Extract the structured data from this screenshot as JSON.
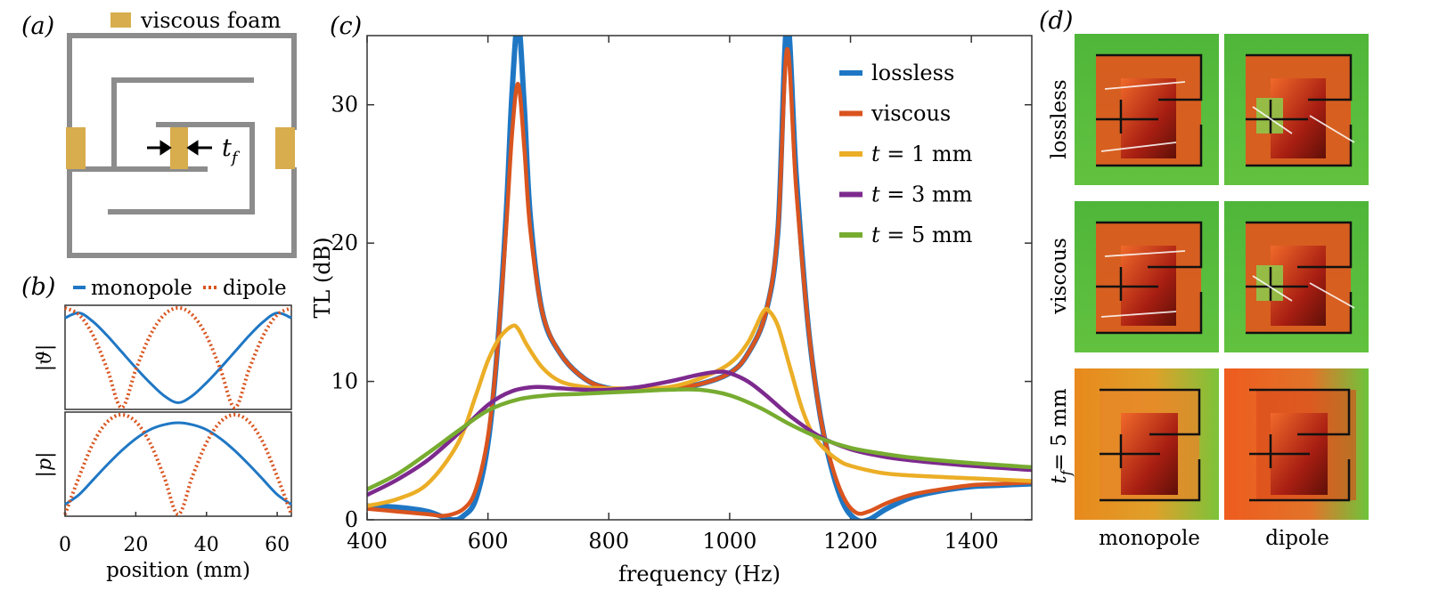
{
  "panels": {
    "a": {
      "label": "(a)",
      "legend_text": "viscous foam",
      "thickness_label": "t",
      "thickness_sub": "f"
    },
    "b": {
      "label": "(b)",
      "legend": [
        "monopole",
        "dipole"
      ],
      "top_ylabel": "|ϑ|",
      "bottom_ylabel": "|p|",
      "xlabel": "position (mm)",
      "xticks": [
        "0",
        "20",
        "40",
        "60"
      ]
    },
    "c": {
      "label": "(c)"
    },
    "d": {
      "label": "(d)",
      "row_labels": [
        "lossless",
        "viscous",
        "t",
        "= 5 mm"
      ],
      "row3_sub": "f",
      "col_labels": [
        "monopole",
        "dipole"
      ]
    }
  },
  "chart_data": [
    {
      "type": "line",
      "panel": "b-top",
      "xlabel": "position (mm)",
      "ylabel": "|ϑ|",
      "xlim": [
        0,
        64
      ],
      "series": [
        {
          "name": "monopole",
          "style": "solid",
          "color": "#1f77c4",
          "x": [
            0,
            4,
            8,
            12,
            16,
            20,
            24,
            28,
            32,
            36,
            40,
            44,
            48,
            52,
            56,
            60,
            64
          ],
          "y": [
            0.9,
            0.95,
            0.86,
            0.72,
            0.56,
            0.4,
            0.25,
            0.12,
            0.05,
            0.12,
            0.25,
            0.4,
            0.56,
            0.72,
            0.86,
            0.95,
            0.9
          ]
        },
        {
          "name": "dipole",
          "style": "dotted",
          "color": "#d9541e",
          "x": [
            0,
            4,
            8,
            12,
            16,
            20,
            24,
            28,
            32,
            36,
            40,
            44,
            48,
            52,
            56,
            60,
            64
          ],
          "y": [
            1.0,
            0.93,
            0.72,
            0.38,
            0.0,
            0.38,
            0.72,
            0.93,
            1.0,
            0.93,
            0.72,
            0.38,
            0.0,
            0.38,
            0.72,
            0.93,
            1.0
          ]
        }
      ]
    },
    {
      "type": "line",
      "panel": "b-bottom",
      "xlabel": "position (mm)",
      "ylabel": "|p|",
      "xlim": [
        0,
        64
      ],
      "series": [
        {
          "name": "monopole",
          "style": "solid",
          "color": "#1f77c4",
          "x": [
            0,
            4,
            8,
            12,
            16,
            20,
            24,
            28,
            32,
            36,
            40,
            44,
            48,
            52,
            56,
            60,
            64
          ],
          "y": [
            0.1,
            0.2,
            0.35,
            0.5,
            0.64,
            0.76,
            0.85,
            0.9,
            0.92,
            0.9,
            0.85,
            0.76,
            0.64,
            0.5,
            0.35,
            0.2,
            0.1
          ]
        },
        {
          "name": "dipole",
          "style": "dotted",
          "color": "#d9541e",
          "x": [
            0,
            4,
            8,
            12,
            16,
            20,
            24,
            28,
            32,
            36,
            40,
            44,
            48,
            52,
            56,
            60,
            64
          ],
          "y": [
            0.0,
            0.38,
            0.72,
            0.93,
            1.0,
            0.93,
            0.72,
            0.38,
            0.0,
            0.38,
            0.72,
            0.93,
            1.0,
            0.93,
            0.72,
            0.38,
            0.0
          ]
        }
      ]
    },
    {
      "type": "line",
      "panel": "c",
      "xlabel": "frequency (Hz)",
      "ylabel": "TL (dB)",
      "xlim": [
        400,
        1500
      ],
      "ylim": [
        0,
        35
      ],
      "xticks": [
        400,
        600,
        800,
        1000,
        1200,
        1400
      ],
      "yticks": [
        0,
        10,
        20,
        30
      ],
      "legend_position": "top-right",
      "series": [
        {
          "name": "lossless",
          "label_parts": [
            "lossless"
          ],
          "color": "#1f77c4",
          "x": [
            400,
            450,
            500,
            540,
            560,
            580,
            600,
            615,
            630,
            640,
            650,
            660,
            670,
            690,
            720,
            760,
            800,
            850,
            900,
            950,
            1000,
            1030,
            1060,
            1080,
            1095,
            1110,
            1130,
            1150,
            1170,
            1190,
            1210,
            1230,
            1260,
            1300,
            1350,
            1400,
            1450,
            1500
          ],
          "y": [
            1.0,
            0.9,
            0.6,
            0.0,
            0.3,
            1.5,
            5.5,
            12,
            22,
            31,
            36,
            30,
            22,
            15,
            12,
            10.2,
            9.5,
            9.4,
            9.5,
            9.8,
            10.6,
            12,
            15,
            21,
            36,
            25,
            14,
            7.5,
            3.5,
            1.0,
            0.0,
            0.0,
            0.8,
            1.6,
            2.1,
            2.4,
            2.5,
            2.6
          ]
        },
        {
          "name": "viscous",
          "label_parts": [
            "viscous"
          ],
          "color": "#d9541e",
          "x": [
            400,
            450,
            500,
            530,
            560,
            580,
            600,
            615,
            630,
            640,
            650,
            660,
            670,
            690,
            720,
            760,
            800,
            850,
            900,
            950,
            1000,
            1030,
            1060,
            1080,
            1095,
            1110,
            1130,
            1150,
            1170,
            1190,
            1210,
            1230,
            1260,
            1300,
            1350,
            1400,
            1450,
            1500
          ],
          "y": [
            0.8,
            0.6,
            0.4,
            0.3,
            0.8,
            2.2,
            6.0,
            12,
            21,
            28,
            31.5,
            27,
            21,
            15,
            12,
            10.2,
            9.5,
            9.4,
            9.5,
            9.8,
            10.6,
            12,
            15,
            21,
            34,
            24,
            14,
            7.5,
            3.8,
            1.5,
            0.5,
            0.6,
            1.2,
            1.8,
            2.2,
            2.5,
            2.6,
            2.7
          ]
        },
        {
          "name": "t = 1 mm",
          "label_parts": [
            "t",
            " = 1 mm"
          ],
          "color": "#ebae26",
          "x": [
            400,
            450,
            500,
            550,
            580,
            600,
            620,
            640,
            650,
            665,
            690,
            720,
            760,
            800,
            850,
            900,
            950,
            1000,
            1030,
            1055,
            1065,
            1080,
            1100,
            1120,
            1140,
            1160,
            1180,
            1200,
            1250,
            1300,
            1400,
            1500
          ],
          "y": [
            1.0,
            1.5,
            2.6,
            5.5,
            9.0,
            11.5,
            13.2,
            14,
            13.8,
            12.6,
            11.0,
            10.0,
            9.6,
            9.5,
            9.5,
            9.6,
            10.2,
            11.3,
            12.8,
            15.0,
            15.1,
            14.0,
            11.0,
            8.0,
            6.0,
            5.0,
            4.3,
            3.9,
            3.4,
            3.2,
            3.0,
            2.8
          ]
        },
        {
          "name": "t = 3 mm",
          "label_parts": [
            "t",
            " = 3 mm"
          ],
          "color": "#7d2a8e",
          "x": [
            400,
            450,
            500,
            550,
            600,
            640,
            680,
            720,
            760,
            800,
            850,
            900,
            950,
            980,
            1000,
            1030,
            1060,
            1100,
            1150,
            1200,
            1250,
            1300,
            1400,
            1500
          ],
          "y": [
            1.8,
            2.9,
            4.3,
            6.2,
            8.3,
            9.3,
            9.6,
            9.5,
            9.4,
            9.4,
            9.6,
            10.0,
            10.5,
            10.7,
            10.6,
            10.0,
            9.0,
            7.5,
            6.0,
            5.1,
            4.6,
            4.3,
            3.9,
            3.6
          ]
        },
        {
          "name": "t = 5 mm",
          "label_parts": [
            "t",
            " = 5 mm"
          ],
          "color": "#77ac30",
          "x": [
            400,
            450,
            500,
            550,
            600,
            650,
            700,
            750,
            800,
            850,
            900,
            950,
            1000,
            1050,
            1100,
            1150,
            1200,
            1250,
            1300,
            1400,
            1500
          ],
          "y": [
            2.2,
            3.3,
            4.8,
            6.4,
            7.9,
            8.7,
            9.0,
            9.1,
            9.2,
            9.3,
            9.4,
            9.4,
            9.0,
            8.1,
            6.9,
            5.9,
            5.2,
            4.8,
            4.5,
            4.1,
            3.8
          ]
        }
      ]
    }
  ]
}
